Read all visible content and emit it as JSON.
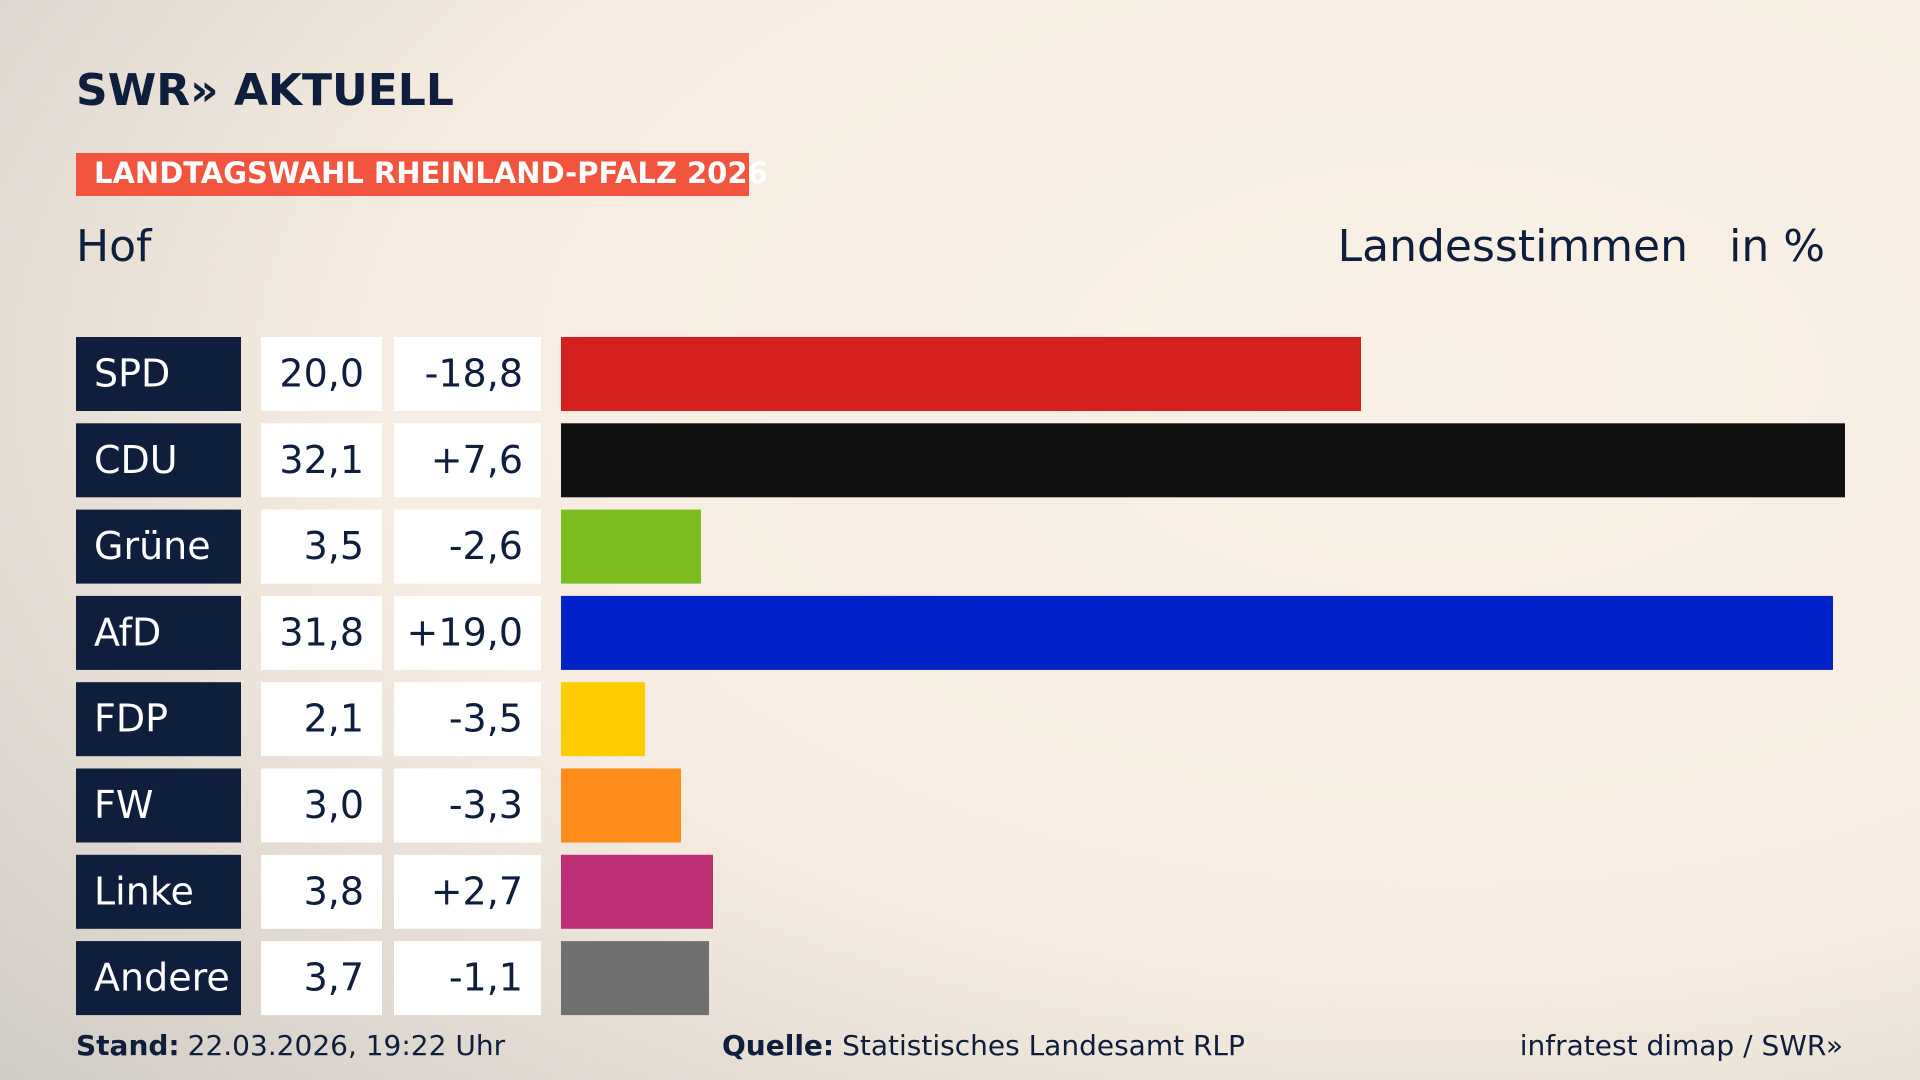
{
  "brand": "SWR» AKTUELL",
  "tag": "LANDTAGSWAHL RHEINLAND-PFALZ 2026",
  "chart_data": {
    "type": "bar",
    "orientation": "horizontal",
    "title": "Hof",
    "subtitle": "Landesstimmen",
    "unit_label": "in %",
    "categories": [
      "SPD",
      "CDU",
      "Grüne",
      "AfD",
      "FDP",
      "FW",
      "Linke",
      "Andere"
    ],
    "values": [
      20.0,
      32.1,
      3.5,
      31.8,
      2.1,
      3.0,
      3.8,
      3.7
    ],
    "value_labels": [
      "20,0",
      "32,1",
      "3,5",
      "31,8",
      "2,1",
      "3,0",
      "3,8",
      "3,7"
    ],
    "change_values": [
      -18.8,
      7.6,
      -2.6,
      19.0,
      -3.5,
      -3.3,
      2.7,
      -1.1
    ],
    "change_labels": [
      "-18,8",
      "+7,6",
      "-2,6",
      "+19,0",
      "-3,5",
      "-3,3",
      "+2,7",
      "-1,1"
    ],
    "colors": [
      "#d61f1f",
      "#111111",
      "#7bbd1e",
      "#0022c8",
      "#ffcc00",
      "#ff8c1a",
      "#bd3075",
      "#707070"
    ]
  },
  "footer": {
    "stand_label": "Stand:",
    "stand": "22.03.2026, 19:22 Uhr",
    "source_label": "Quelle:",
    "source": "Statistisches Landesamt RLP",
    "credit": "infratest dimap / SWR»"
  }
}
